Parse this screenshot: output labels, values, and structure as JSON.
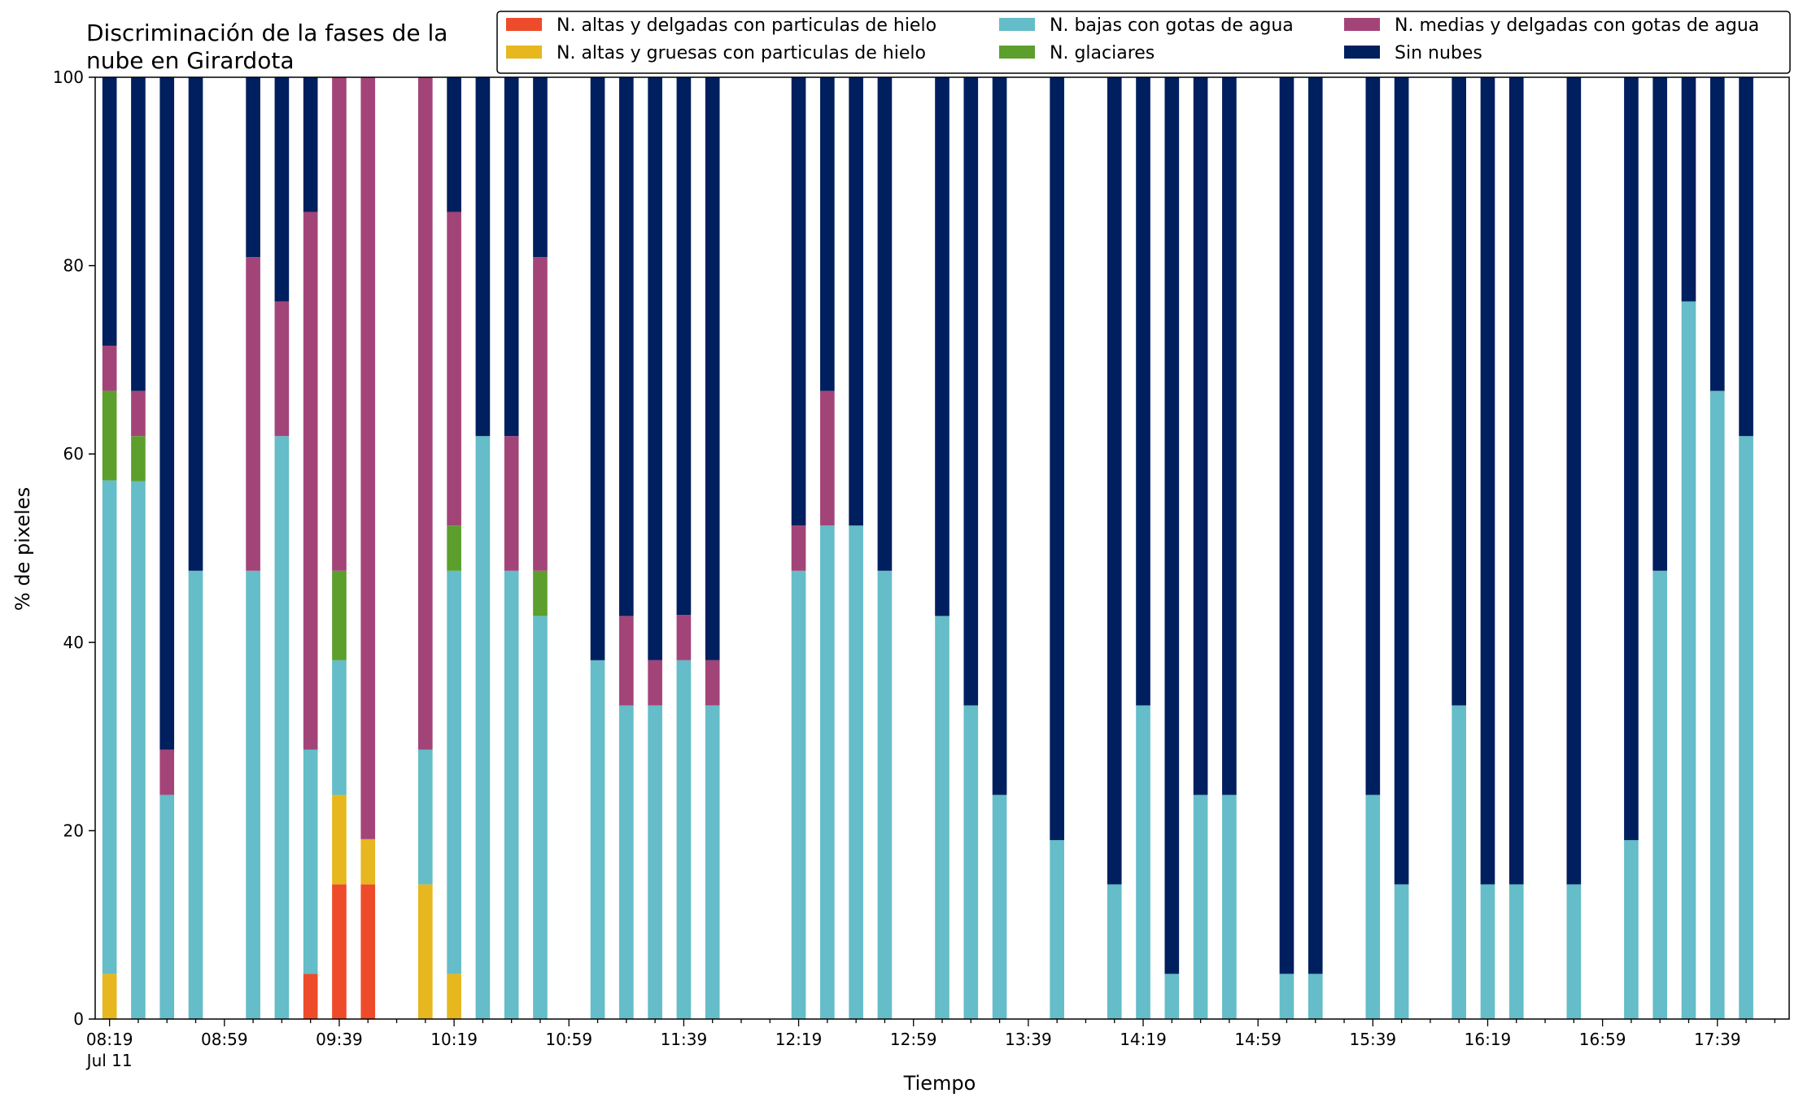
{
  "chart_data": {
    "type": "bar",
    "stacked": true,
    "title_lines": [
      "Discriminación de la fases de la",
      "nube en Girardota"
    ],
    "xlabel": "Tiempo",
    "ylabel": "% de pixeles",
    "ylim": [
      0,
      100
    ],
    "yticks": [
      "0",
      "20",
      "40",
      "60",
      "80",
      "100"
    ],
    "xlim_minutes_after_08_19": [
      -5,
      585
    ],
    "xtick_labels": [
      "08:19",
      "08:59",
      "09:39",
      "10:19",
      "10:59",
      "11:39",
      "12:19",
      "12:59",
      "13:39",
      "14:19",
      "14:59",
      "15:39",
      "16:19",
      "16:59",
      "17:39"
    ],
    "xtick_date": "Jul 11",
    "legend_position": "top-right",
    "series": [
      {
        "key": "alta_delgada",
        "name": "N. altas y delgadas con particulas de hielo",
        "color": "#ee4b2b"
      },
      {
        "key": "alta_gruesa",
        "name": "N. altas y gruesas con particulas de hielo",
        "color": "#e6b71e"
      },
      {
        "key": "baja_agua",
        "name": "N. bajas con gotas de agua",
        "color": "#64bdc8"
      },
      {
        "key": "glaciar",
        "name": "N. glaciares",
        "color": "#5c9f2c"
      },
      {
        "key": "media_agua",
        "name": "N. medias y delgadas con gotas de agua",
        "color": "#a34478"
      },
      {
        "key": "sin_nubes",
        "name": "Sin nubes",
        "color": "#001f5f"
      }
    ],
    "legend_order": [
      "alta_delgada",
      "alta_gruesa",
      "baja_agua",
      "glaciar",
      "media_agua",
      "sin_nubes"
    ],
    "bars": [
      {
        "t": 0,
        "values": [
          0,
          4.8,
          52.4,
          9.5,
          4.8,
          28.5
        ]
      },
      {
        "t": 10,
        "values": [
          0,
          0,
          57.1,
          4.8,
          4.8,
          33.3
        ]
      },
      {
        "t": 20,
        "values": [
          0,
          0,
          23.8,
          0,
          4.8,
          71.4
        ]
      },
      {
        "t": 30,
        "values": [
          0,
          0,
          47.6,
          0,
          0,
          52.4
        ]
      },
      {
        "t": 50,
        "values": [
          0,
          0,
          47.6,
          0,
          33.3,
          19.1
        ]
      },
      {
        "t": 60,
        "values": [
          0,
          0,
          61.9,
          0,
          14.3,
          23.8
        ]
      },
      {
        "t": 70,
        "values": [
          4.8,
          0,
          23.8,
          0,
          57.1,
          14.3
        ]
      },
      {
        "t": 80,
        "values": [
          14.3,
          9.5,
          14.3,
          9.5,
          52.4,
          0
        ]
      },
      {
        "t": 90,
        "values": [
          14.3,
          4.8,
          0,
          0,
          80.9,
          0
        ]
      },
      {
        "t": 110,
        "values": [
          0,
          14.3,
          14.3,
          0,
          71.4,
          0
        ]
      },
      {
        "t": 120,
        "values": [
          0,
          4.8,
          42.8,
          4.8,
          33.3,
          14.3
        ]
      },
      {
        "t": 130,
        "values": [
          0,
          0,
          61.9,
          0,
          0,
          38.1
        ]
      },
      {
        "t": 140,
        "values": [
          0,
          0,
          47.6,
          0,
          14.3,
          38.1
        ]
      },
      {
        "t": 150,
        "values": [
          0,
          0,
          42.8,
          4.8,
          33.3,
          19.1
        ]
      },
      {
        "t": 170,
        "values": [
          0,
          0,
          38.1,
          0,
          0,
          61.9
        ]
      },
      {
        "t": 180,
        "values": [
          0,
          0,
          33.3,
          0,
          9.5,
          57.2
        ]
      },
      {
        "t": 190,
        "values": [
          0,
          0,
          33.3,
          0,
          4.8,
          61.9
        ]
      },
      {
        "t": 200,
        "values": [
          0,
          0,
          38.1,
          0,
          4.8,
          57.1
        ]
      },
      {
        "t": 210,
        "values": [
          0,
          0,
          33.3,
          0,
          4.8,
          61.9
        ]
      },
      {
        "t": 240,
        "values": [
          0,
          0,
          47.6,
          0,
          4.8,
          47.6
        ]
      },
      {
        "t": 250,
        "values": [
          0,
          0,
          52.4,
          0,
          14.3,
          33.3
        ]
      },
      {
        "t": 260,
        "values": [
          0,
          0,
          52.4,
          0,
          0,
          47.6
        ]
      },
      {
        "t": 270,
        "values": [
          0,
          0,
          47.6,
          0,
          0,
          52.4
        ]
      },
      {
        "t": 290,
        "values": [
          0,
          0,
          42.8,
          0,
          0,
          57.2
        ]
      },
      {
        "t": 300,
        "values": [
          0,
          0,
          33.3,
          0,
          0,
          66.7
        ]
      },
      {
        "t": 310,
        "values": [
          0,
          0,
          23.8,
          0,
          0,
          76.2
        ]
      },
      {
        "t": 330,
        "values": [
          0,
          0,
          19.0,
          0,
          0,
          81.0
        ]
      },
      {
        "t": 350,
        "values": [
          0,
          0,
          14.3,
          0,
          0,
          85.7
        ]
      },
      {
        "t": 360,
        "values": [
          0,
          0,
          33.3,
          0,
          0,
          66.7
        ]
      },
      {
        "t": 370,
        "values": [
          0,
          0,
          4.8,
          0,
          0,
          95.2
        ]
      },
      {
        "t": 380,
        "values": [
          0,
          0,
          23.8,
          0,
          0,
          76.2
        ]
      },
      {
        "t": 390,
        "values": [
          0,
          0,
          23.8,
          0,
          0,
          76.2
        ]
      },
      {
        "t": 410,
        "values": [
          0,
          0,
          4.8,
          0,
          0,
          95.2
        ]
      },
      {
        "t": 420,
        "values": [
          0,
          0,
          4.8,
          0,
          0,
          95.2
        ]
      },
      {
        "t": 440,
        "values": [
          0,
          0,
          23.8,
          0,
          0,
          76.2
        ]
      },
      {
        "t": 450,
        "values": [
          0,
          0,
          14.3,
          0,
          0,
          85.7
        ]
      },
      {
        "t": 470,
        "values": [
          0,
          0,
          33.3,
          0,
          0,
          66.7
        ]
      },
      {
        "t": 480,
        "values": [
          0,
          0,
          14.3,
          0,
          0,
          85.7
        ]
      },
      {
        "t": 490,
        "values": [
          0,
          0,
          14.3,
          0,
          0,
          85.7
        ]
      },
      {
        "t": 510,
        "values": [
          0,
          0,
          14.3,
          0,
          0,
          85.7
        ]
      },
      {
        "t": 530,
        "values": [
          0,
          0,
          19.0,
          0,
          0,
          81.0
        ]
      },
      {
        "t": 540,
        "values": [
          0,
          0,
          47.6,
          0,
          0,
          52.4
        ]
      },
      {
        "t": 550,
        "values": [
          0,
          0,
          76.2,
          0,
          0,
          23.8
        ]
      },
      {
        "t": 560,
        "values": [
          0,
          0,
          66.7,
          0,
          0,
          33.3
        ]
      },
      {
        "t": 570,
        "values": [
          0,
          0,
          61.9,
          0,
          0,
          38.1
        ]
      }
    ]
  }
}
